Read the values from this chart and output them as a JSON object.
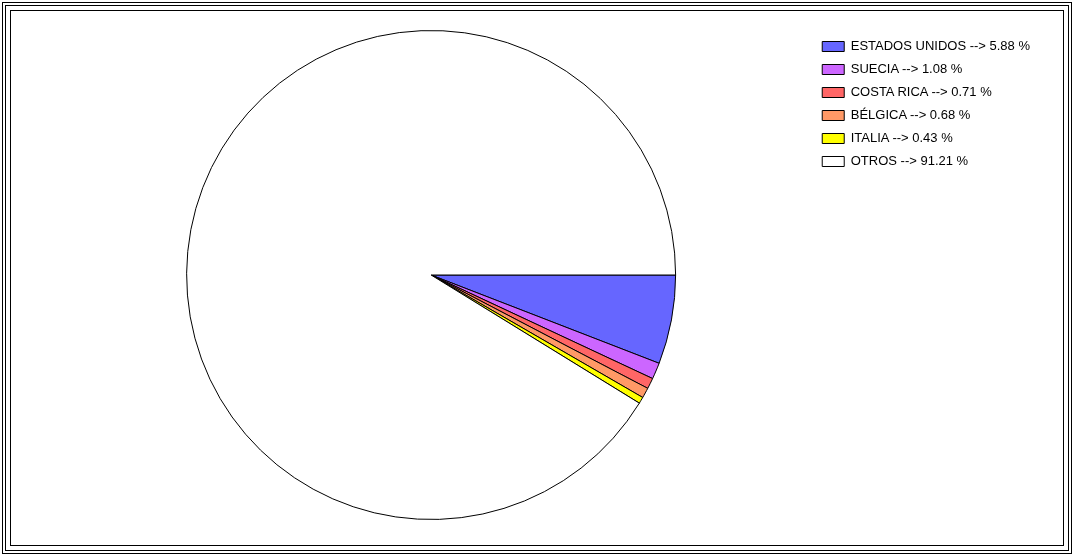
{
  "chart_data": {
    "type": "pie",
    "categories": [
      "ESTADOS UNIDOS --> 5.88 %",
      "SUECIA --> 1.08 %",
      "COSTA RICA --> 0.71 %",
      "BÉLGICA --> 0.68 %",
      "ITALIA --> 0.43 %",
      "OTROS --> 91.21 %"
    ],
    "values": [
      5.88,
      1.08,
      0.71,
      0.68,
      0.43,
      91.21
    ],
    "colors": [
      "#6666ff",
      "#cc66ff",
      "#ff6666",
      "#ff9966",
      "#ffff00",
      "#ffffff"
    ],
    "legend": "top right"
  }
}
